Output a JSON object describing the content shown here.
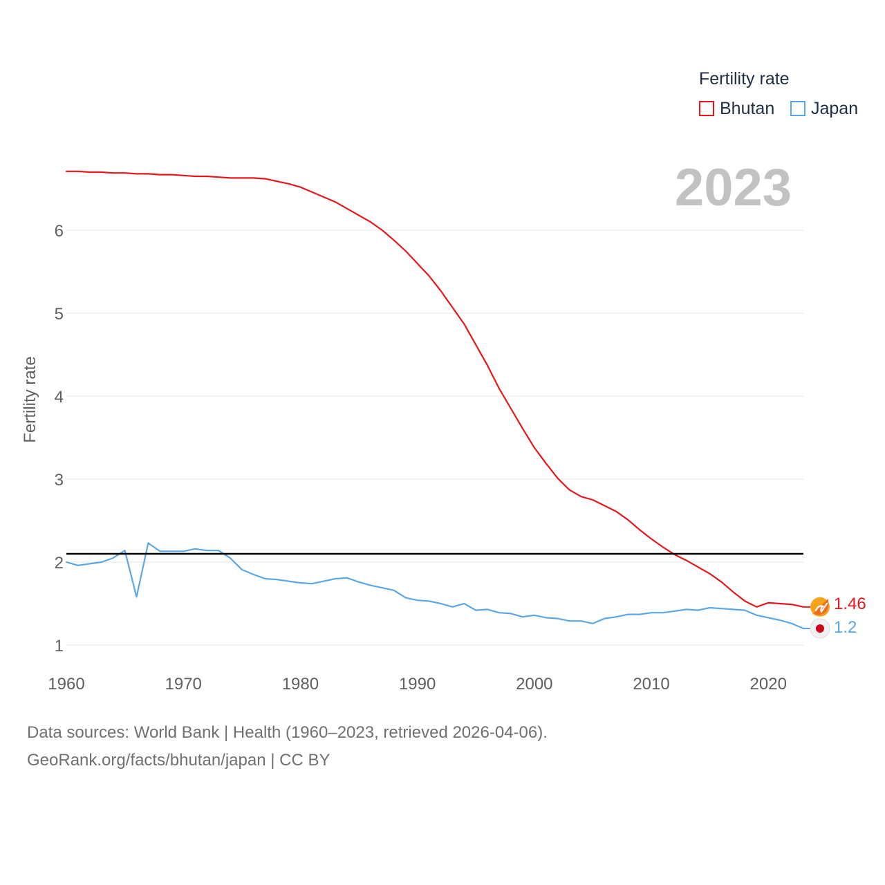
{
  "year_display": "2023",
  "legend": {
    "title": "Fertility rate",
    "items": [
      {
        "label": "Bhutan",
        "color": "#e6161b"
      },
      {
        "label": "Japan",
        "color": "#5aa7e8"
      }
    ]
  },
  "end_labels": {
    "bhutan": "1.46",
    "japan": "1.2"
  },
  "footer": {
    "line1": "Data sources: World Bank | Health (1960–2023, retrieved 2026-04-06).",
    "line2": "GeoRank.org/facts/bhutan/japan | CC BY"
  },
  "chart_data": {
    "type": "line",
    "title": "",
    "xlabel": "",
    "ylabel": "Fertility rate",
    "xlim": [
      1960,
      2023
    ],
    "ylim": [
      0.75,
      7.0
    ],
    "x_ticks": [
      1960,
      1970,
      1980,
      1990,
      2000,
      2010,
      2020
    ],
    "y_ticks": [
      1,
      2,
      3,
      4,
      5,
      6
    ],
    "reference_line": {
      "y": 2.1,
      "color": "#000000"
    },
    "x": [
      1960,
      1961,
      1962,
      1963,
      1964,
      1965,
      1966,
      1967,
      1968,
      1969,
      1970,
      1971,
      1972,
      1973,
      1974,
      1975,
      1976,
      1977,
      1978,
      1979,
      1980,
      1981,
      1982,
      1983,
      1984,
      1985,
      1986,
      1987,
      1988,
      1989,
      1990,
      1991,
      1992,
      1993,
      1994,
      1995,
      1996,
      1997,
      1998,
      1999,
      2000,
      2001,
      2002,
      2003,
      2004,
      2005,
      2006,
      2007,
      2008,
      2009,
      2010,
      2011,
      2012,
      2013,
      2014,
      2015,
      2016,
      2017,
      2018,
      2019,
      2020,
      2021,
      2022,
      2023
    ],
    "series": [
      {
        "name": "Bhutan",
        "color": "#e6161b",
        "values": [
          6.71,
          6.71,
          6.7,
          6.7,
          6.69,
          6.69,
          6.68,
          6.68,
          6.67,
          6.67,
          6.66,
          6.65,
          6.65,
          6.64,
          6.63,
          6.63,
          6.63,
          6.62,
          6.59,
          6.56,
          6.52,
          6.46,
          6.4,
          6.34,
          6.26,
          6.18,
          6.1,
          6.0,
          5.88,
          5.75,
          5.6,
          5.45,
          5.27,
          5.07,
          4.87,
          4.62,
          4.37,
          4.09,
          3.85,
          3.61,
          3.38,
          3.19,
          3.01,
          2.87,
          2.79,
          2.75,
          2.68,
          2.61,
          2.51,
          2.39,
          2.28,
          2.18,
          2.09,
          2.02,
          1.94,
          1.86,
          1.76,
          1.64,
          1.53,
          1.46,
          1.51,
          1.5,
          1.49,
          1.46
        ]
      },
      {
        "name": "Japan",
        "color": "#5aa7e8",
        "values": [
          2.0,
          1.96,
          1.98,
          2.0,
          2.05,
          2.14,
          1.58,
          2.23,
          2.13,
          2.13,
          2.13,
          2.16,
          2.14,
          2.14,
          2.05,
          1.91,
          1.85,
          1.8,
          1.79,
          1.77,
          1.75,
          1.74,
          1.77,
          1.8,
          1.81,
          1.76,
          1.72,
          1.69,
          1.66,
          1.57,
          1.54,
          1.53,
          1.5,
          1.46,
          1.5,
          1.42,
          1.43,
          1.39,
          1.38,
          1.34,
          1.36,
          1.33,
          1.32,
          1.29,
          1.29,
          1.26,
          1.32,
          1.34,
          1.37,
          1.37,
          1.39,
          1.39,
          1.41,
          1.43,
          1.42,
          1.45,
          1.44,
          1.43,
          1.42,
          1.36,
          1.33,
          1.3,
          1.26,
          1.2
        ]
      }
    ]
  }
}
